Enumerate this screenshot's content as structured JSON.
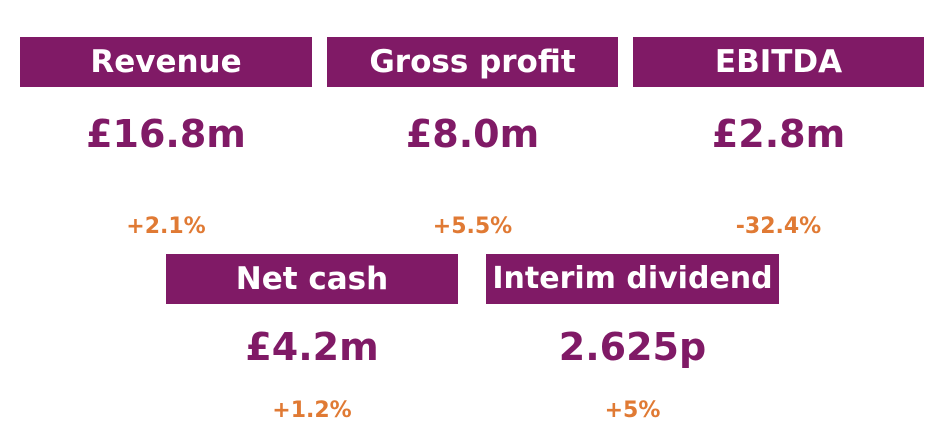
{
  "colors": {
    "header_background": "#801a66",
    "header_text": "#ffffff",
    "value_text": "#801a66",
    "change_text": "#e07a34"
  },
  "kpis": [
    {
      "label": "Revenue",
      "value": "£16.8m",
      "change": "+2.1%"
    },
    {
      "label": "Gross profit",
      "value": "£8.0m",
      "change": "+5.5%"
    },
    {
      "label": "EBITDA",
      "value": "£2.8m",
      "change": "-32.4%"
    },
    {
      "label": "Net cash",
      "value": "£4.2m",
      "change": "+1.2%"
    },
    {
      "label": "Interim dividend",
      "value": "2.625p",
      "change": "+5%"
    }
  ]
}
